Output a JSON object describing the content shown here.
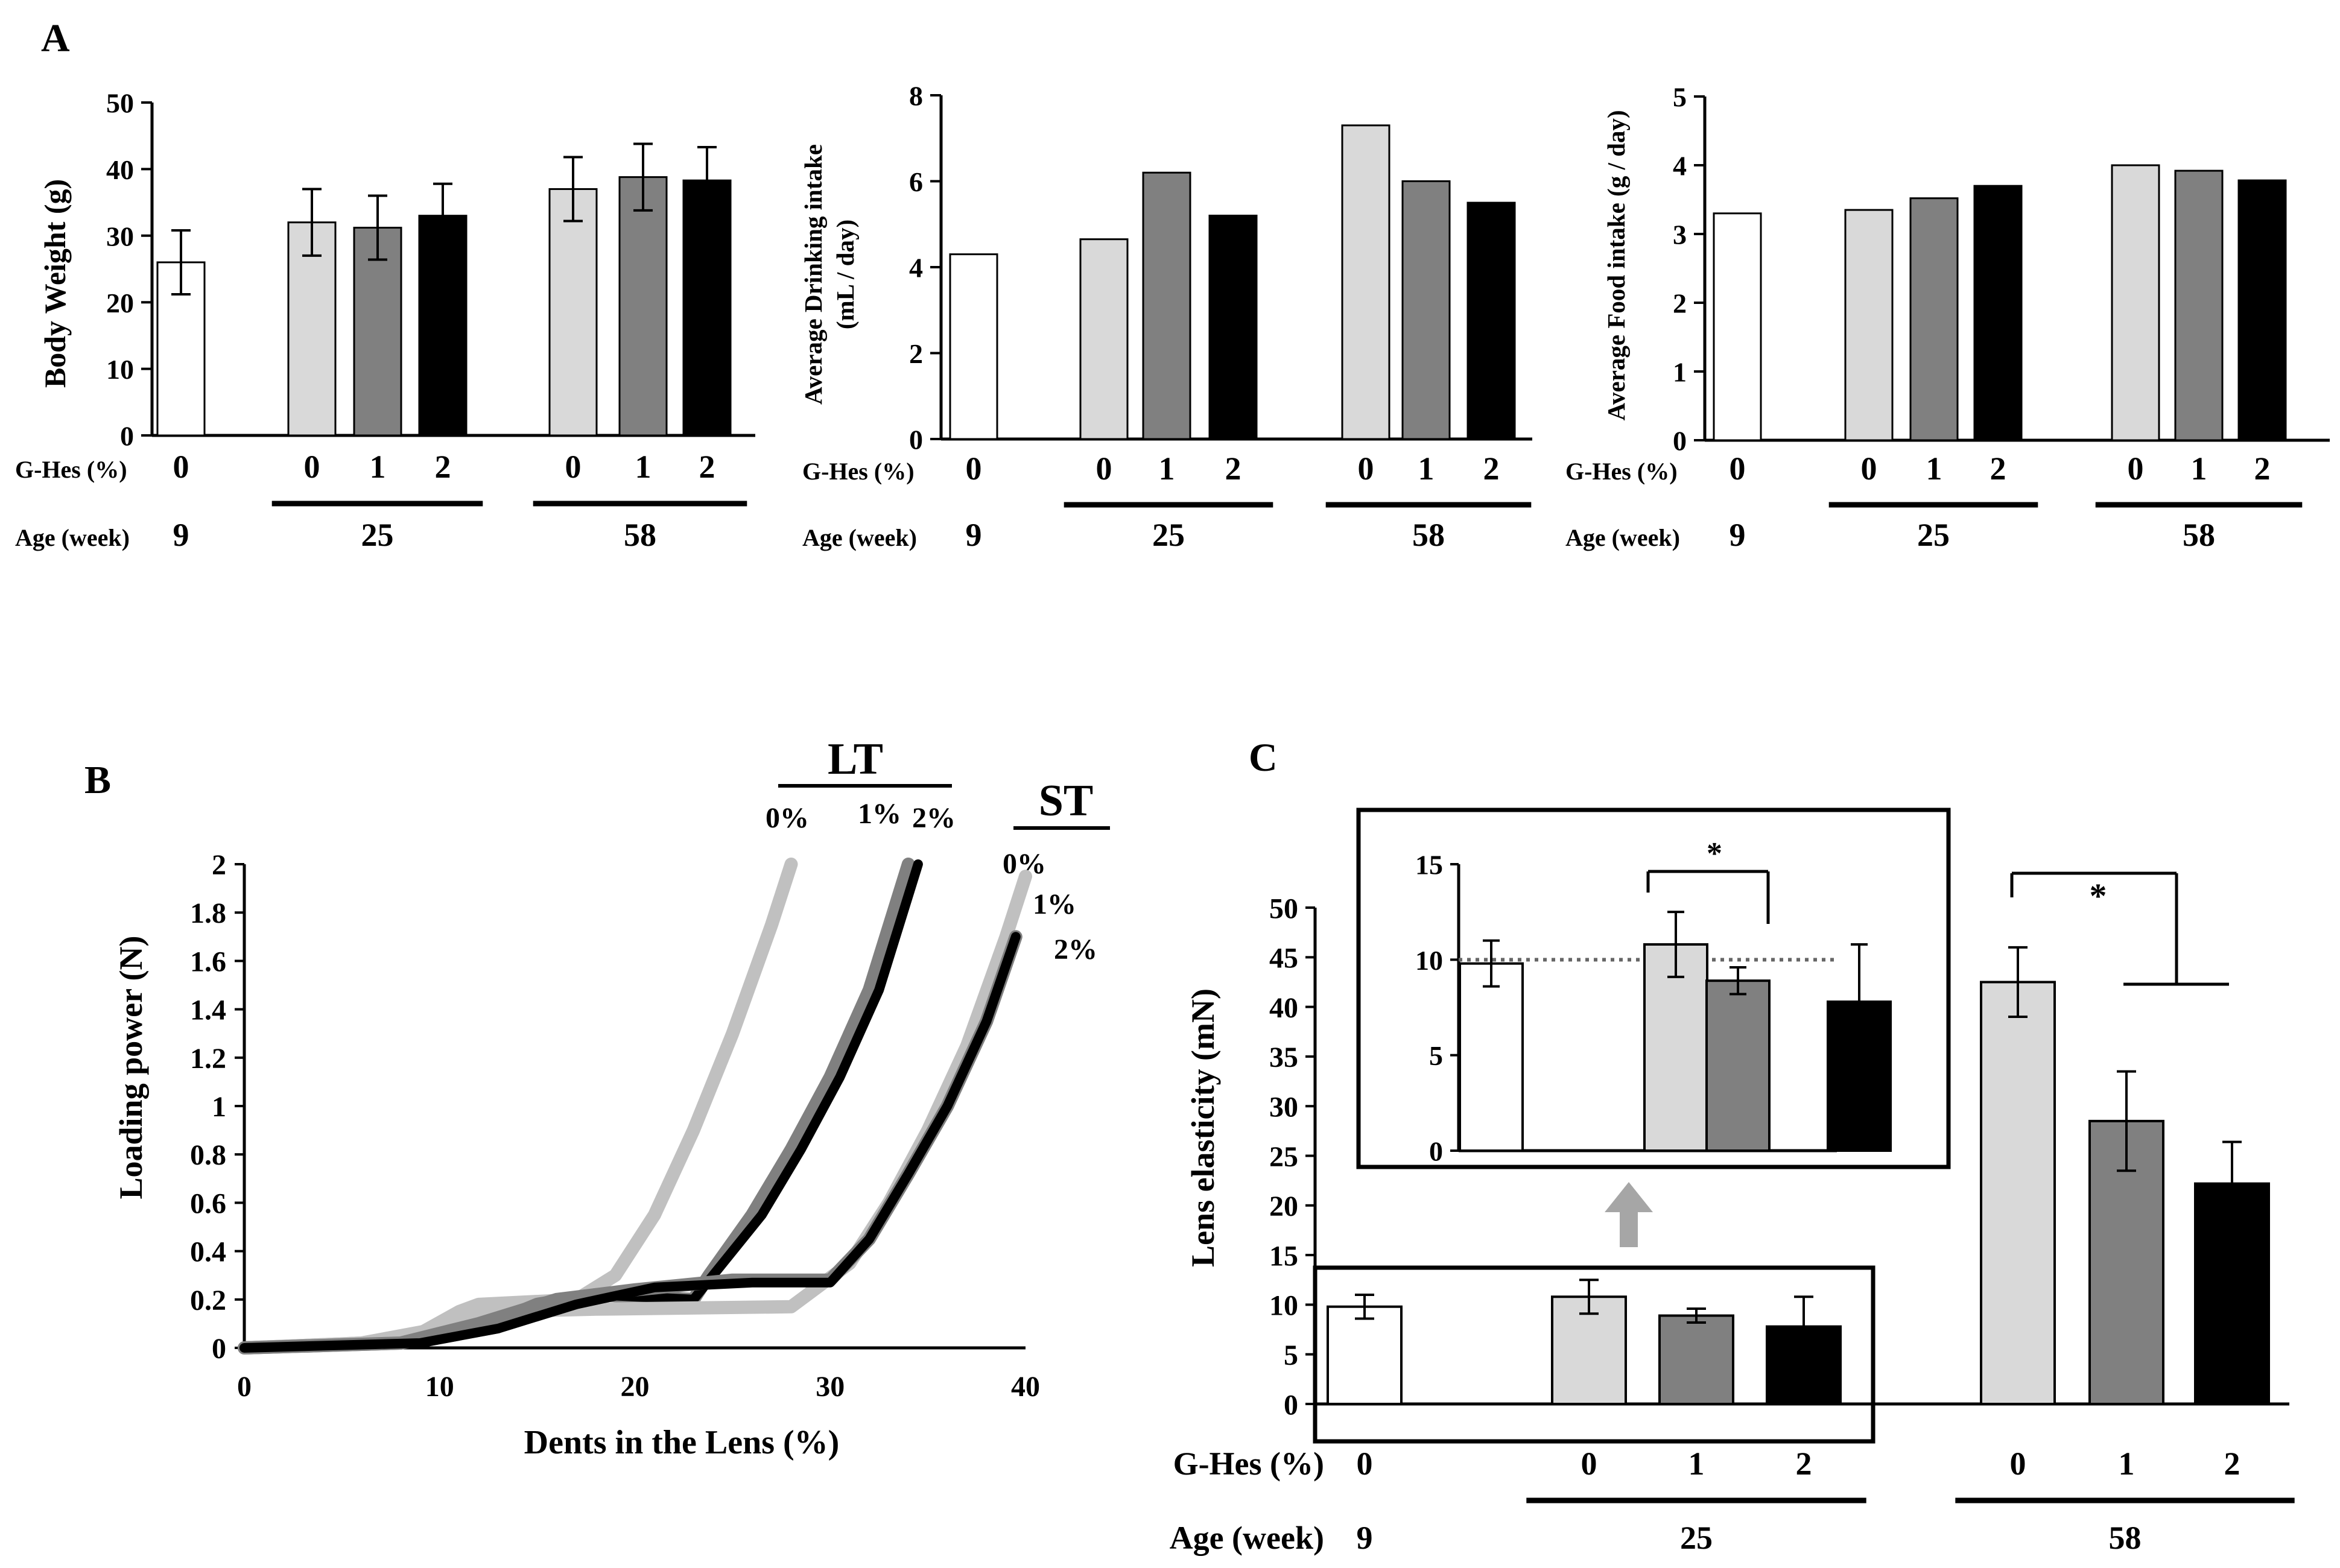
{
  "panels": {
    "a": "A",
    "b": "B",
    "c": "C"
  },
  "row_labels": {
    "ghes": "G-Hes (%)",
    "age": "Age (week)"
  },
  "colors": {
    "g0_young": "#ffffff",
    "g0": "#d9d9d9",
    "g1": "#808080",
    "g2": "#000000",
    "curve_0": "#c0c0c0",
    "curve_1": "#808080",
    "curve_2": "#000000"
  },
  "chart_data": [
    {
      "id": "body_weight",
      "type": "bar",
      "ylabel": "Body Weight (g)",
      "ylim": [
        0,
        50
      ],
      "yticks": [
        0,
        10,
        20,
        30,
        40,
        50
      ],
      "groups": [
        {
          "age": "9",
          "ghes": [
            "0"
          ],
          "values": [
            26
          ],
          "errors": [
            4.8
          ]
        },
        {
          "age": "25",
          "ghes": [
            "0",
            "1",
            "2"
          ],
          "values": [
            32,
            31.2,
            33
          ],
          "errors": [
            5,
            4.8,
            4.8
          ]
        },
        {
          "age": "58",
          "ghes": [
            "0",
            "1",
            "2"
          ],
          "values": [
            37,
            38.8,
            38.3
          ],
          "errors": [
            4.8,
            5,
            5
          ]
        }
      ]
    },
    {
      "id": "drinking_intake",
      "type": "bar",
      "ylabel": "Average Drinking intake",
      "ylabel2": "(mL / day)",
      "ylim": [
        0,
        8
      ],
      "yticks": [
        0,
        2,
        4,
        6,
        8
      ],
      "groups": [
        {
          "age": "9",
          "ghes": [
            "0"
          ],
          "values": [
            4.3
          ]
        },
        {
          "age": "25",
          "ghes": [
            "0",
            "1",
            "2"
          ],
          "values": [
            4.65,
            6.2,
            5.2
          ]
        },
        {
          "age": "58",
          "ghes": [
            "0",
            "1",
            "2"
          ],
          "values": [
            7.3,
            6.0,
            5.5
          ]
        }
      ]
    },
    {
      "id": "food_intake",
      "type": "bar",
      "ylabel": "Average Food intake (g / day)",
      "ylim": [
        0,
        5
      ],
      "yticks": [
        0,
        1,
        2,
        3,
        4,
        5
      ],
      "groups": [
        {
          "age": "9",
          "ghes": [
            "0"
          ],
          "values": [
            3.3
          ]
        },
        {
          "age": "25",
          "ghes": [
            "0",
            "1",
            "2"
          ],
          "values": [
            3.35,
            3.52,
            3.7
          ]
        },
        {
          "age": "58",
          "ghes": [
            "0",
            "1",
            "2"
          ],
          "values": [
            4.0,
            3.92,
            3.78
          ]
        }
      ]
    },
    {
      "id": "loading_curves",
      "type": "line",
      "xlabel": "Dents in the Lens (%)",
      "ylabel": "Loading power (N)",
      "xlim": [
        0,
        40
      ],
      "ylim": [
        0,
        2
      ],
      "xticks": [
        "0",
        "10",
        "20",
        "30",
        "40"
      ],
      "yticks": [
        "0",
        "0.2",
        "0.4",
        "0.6",
        "0.8",
        "1",
        "1.2",
        "1.4",
        "1.6",
        "1.8",
        "2"
      ],
      "groups": [
        {
          "label": "LT",
          "series_labels": [
            "0%",
            "1%",
            "2%"
          ]
        },
        {
          "label": "ST",
          "series_labels": [
            "0%",
            "1%",
            "2%"
          ]
        }
      ],
      "series": [
        {
          "group": "LT",
          "conc": "0%",
          "points": [
            [
              0,
              0
            ],
            [
              6,
              0.02
            ],
            [
              9,
              0.06
            ],
            [
              11,
              0.15
            ],
            [
              12,
              0.18
            ],
            [
              17,
              0.2
            ],
            [
              19,
              0.3
            ],
            [
              21,
              0.55
            ],
            [
              23,
              0.9
            ],
            [
              25,
              1.3
            ],
            [
              27,
              1.75
            ],
            [
              28,
              2.0
            ]
          ]
        },
        {
          "group": "LT",
          "conc": "1%",
          "points": [
            [
              0,
              0
            ],
            [
              8,
              0.02
            ],
            [
              12,
              0.08
            ],
            [
              15,
              0.18
            ],
            [
              18,
              0.22
            ],
            [
              23,
              0.2
            ],
            [
              23.8,
              0.3
            ],
            [
              26,
              0.55
            ],
            [
              28,
              0.82
            ],
            [
              30,
              1.12
            ],
            [
              32,
              1.48
            ],
            [
              34,
              2.0
            ]
          ]
        },
        {
          "group": "LT",
          "conc": "2%",
          "points": [
            [
              0,
              0
            ],
            [
              9,
              0.02
            ],
            [
              13,
              0.08
            ],
            [
              16,
              0.18
            ],
            [
              18,
              0.22
            ],
            [
              23,
              0.2
            ],
            [
              24,
              0.3
            ],
            [
              26.5,
              0.55
            ],
            [
              28.5,
              0.82
            ],
            [
              30.5,
              1.12
            ],
            [
              32.5,
              1.48
            ],
            [
              34.5,
              2.0
            ]
          ]
        },
        {
          "group": "ST",
          "conc": "0%",
          "points": [
            [
              0,
              0
            ],
            [
              6,
              0.02
            ],
            [
              10,
              0.08
            ],
            [
              13,
              0.15
            ],
            [
              18,
              0.16
            ],
            [
              28,
              0.17
            ],
            [
              31,
              0.35
            ],
            [
              33,
              0.6
            ],
            [
              35,
              0.9
            ],
            [
              37,
              1.25
            ],
            [
              39,
              1.7
            ],
            [
              40,
              1.95
            ]
          ]
        },
        {
          "group": "ST",
          "conc": "1%",
          "points": [
            [
              0,
              0
            ],
            [
              8,
              0.02
            ],
            [
              12,
              0.1
            ],
            [
              16,
              0.2
            ],
            [
              20,
              0.24
            ],
            [
              25,
              0.28
            ],
            [
              30,
              0.28
            ],
            [
              32,
              0.45
            ],
            [
              34,
              0.72
            ],
            [
              36,
              1.0
            ],
            [
              38,
              1.35
            ],
            [
              39.5,
              1.7
            ]
          ]
        },
        {
          "group": "ST",
          "conc": "2%",
          "points": [
            [
              0,
              0
            ],
            [
              9,
              0.02
            ],
            [
              13,
              0.08
            ],
            [
              17,
              0.18
            ],
            [
              21,
              0.25
            ],
            [
              26,
              0.27
            ],
            [
              30,
              0.27
            ],
            [
              32,
              0.45
            ],
            [
              34,
              0.72
            ],
            [
              36,
              1.0
            ],
            [
              38,
              1.35
            ],
            [
              39.5,
              1.7
            ]
          ]
        }
      ]
    },
    {
      "id": "lens_elasticity",
      "type": "bar",
      "ylabel": "Lens elasticity (mN)",
      "ylim": [
        0,
        50
      ],
      "yticks": [
        0,
        5,
        10,
        15,
        20,
        25,
        30,
        35,
        40,
        45,
        50
      ],
      "groups": [
        {
          "age": "9",
          "ghes": [
            "0"
          ],
          "values": [
            9.8
          ],
          "errors": [
            1.2
          ]
        },
        {
          "age": "25",
          "ghes": [
            "0",
            "1",
            "2"
          ],
          "values": [
            10.8,
            8.9,
            7.8
          ],
          "errors": [
            1.7,
            0.7,
            3.0
          ]
        },
        {
          "age": "58",
          "ghes": [
            "0",
            "1",
            "2"
          ],
          "values": [
            42.5,
            28.5,
            22.2
          ],
          "errors": [
            3.5,
            5,
            4.2
          ]
        }
      ],
      "significance": "*"
    },
    {
      "id": "lens_elasticity_inset",
      "type": "bar",
      "ylim": [
        0,
        15
      ],
      "yticks": [
        0,
        5,
        10,
        15
      ],
      "reference_line": 10,
      "groups": [
        {
          "age": "9",
          "ghes": [
            "0"
          ],
          "values": [
            9.8
          ],
          "errors": [
            1.2
          ]
        },
        {
          "age": "25",
          "ghes": [
            "0",
            "1",
            "2"
          ],
          "values": [
            10.8,
            8.9,
            7.8
          ],
          "errors": [
            1.7,
            0.7,
            3.0
          ]
        }
      ],
      "significance": "*"
    }
  ]
}
